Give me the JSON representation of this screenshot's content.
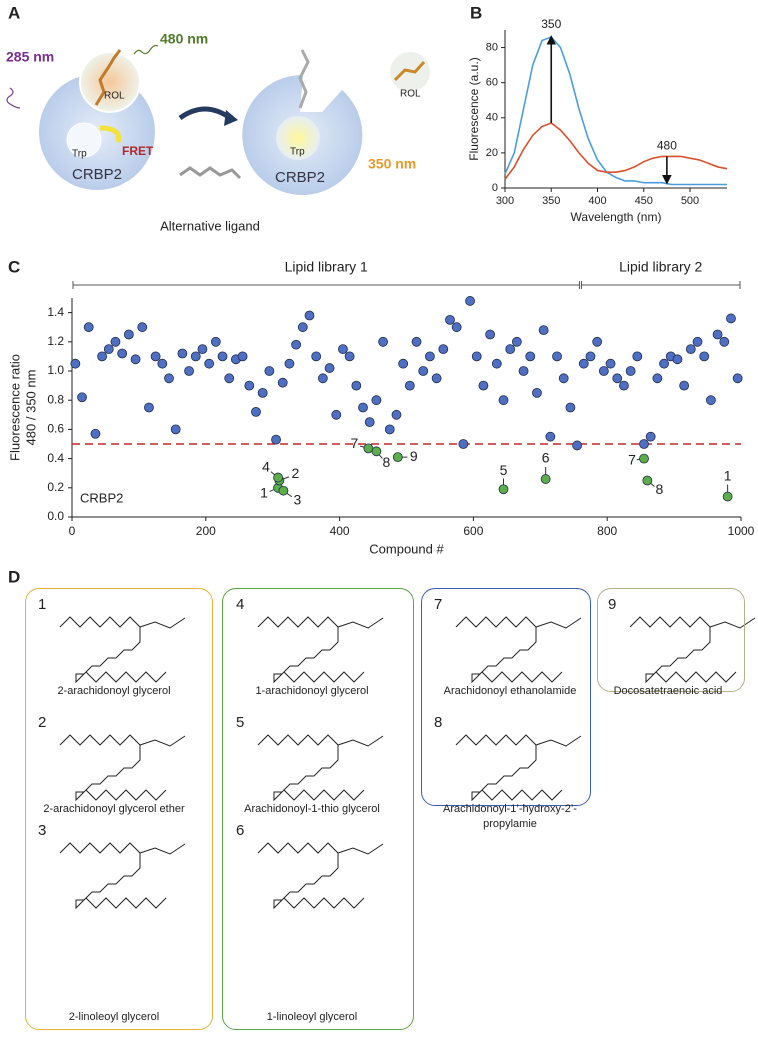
{
  "panel_labels": [
    "A",
    "B",
    "C",
    "D"
  ],
  "panel_a": {
    "excitation": "285 nm",
    "emission_fret": "480 nm",
    "rol_bound": "ROL",
    "trp_left": "Trp",
    "fret": "FRET",
    "protein_left": "CRBP2",
    "rol_free": "ROL",
    "trp_right": "Trp",
    "emission_trp": "350 nm",
    "protein_right": "CRBP2",
    "ligand": "Alternative ligand"
  },
  "chart_data": [
    {
      "type": "line",
      "xlabel": "Wavelength (nm)",
      "ylabel": "Fluorescence (a.u.)",
      "x": [
        300,
        310,
        320,
        330,
        340,
        350,
        360,
        370,
        380,
        390,
        400,
        410,
        420,
        430,
        440,
        450,
        460,
        470,
        480,
        490,
        500,
        510,
        520,
        530,
        540
      ],
      "xlim": [
        300,
        540
      ],
      "xticks": [
        300,
        350,
        400,
        450,
        500
      ],
      "ylim": [
        0,
        90
      ],
      "yticks": [
        0,
        20,
        40,
        60,
        80
      ],
      "series": [
        {
          "color": "#4a9ee0",
          "values": [
            8,
            20,
            45,
            70,
            84,
            86,
            80,
            65,
            45,
            28,
            16,
            9,
            6,
            4,
            4,
            3,
            3,
            3,
            2,
            2,
            2,
            2,
            2,
            2,
            2
          ]
        },
        {
          "color": "#d9502f",
          "values": [
            5,
            12,
            22,
            30,
            35,
            37,
            33,
            27,
            20,
            14,
            10,
            9,
            9,
            10,
            12,
            15,
            17,
            18,
            18,
            18,
            17,
            16,
            14,
            12,
            11
          ]
        }
      ],
      "annotations": [
        {
          "text": "350",
          "x": 350,
          "from": 37,
          "to": 86
        },
        {
          "text": "480",
          "x": 475,
          "from": 18,
          "to": 3
        }
      ]
    },
    {
      "type": "scatter",
      "xlabel": "Compound #",
      "ylabel": [
        "Fluorescence ratio",
        "480 / 350 nm"
      ],
      "annotation": "CRBP2",
      "xlim": [
        0,
        1000
      ],
      "xticks": [
        0,
        200,
        400,
        600,
        800,
        1000
      ],
      "ylim": [
        0,
        1.5
      ],
      "yticks": [
        {
          "value": 0,
          "label": "0.0"
        },
        0.2,
        0.4,
        0.6,
        0.8,
        {
          "value": 1,
          "label": "1.0"
        },
        1.2,
        1.4
      ],
      "threshold": 0.5,
      "threshold_color": "#c0282d",
      "groups": [
        {
          "label": "Lipid library 1",
          "range": [
            0,
            760
          ]
        },
        {
          "label": "Lipid library 2",
          "range": [
            760,
            1000
          ]
        }
      ],
      "series": [
        {
          "color": "#4f6fc4",
          "x": [
            5,
            15,
            25,
            35,
            45,
            55,
            65,
            75,
            85,
            95,
            105,
            115,
            125,
            135,
            145,
            155,
            165,
            175,
            185,
            195,
            205,
            215,
            225,
            235,
            245,
            255,
            265,
            275,
            285,
            295,
            305,
            315,
            325,
            335,
            345,
            355,
            365,
            375,
            385,
            395,
            405,
            415,
            425,
            435,
            445,
            455,
            465,
            475,
            485,
            495,
            505,
            515,
            525,
            535,
            545,
            555,
            565,
            575,
            585,
            595,
            605,
            615,
            625,
            635,
            645,
            655,
            665,
            675,
            685,
            695,
            705,
            715,
            725,
            735,
            745,
            755,
            765,
            775,
            785,
            795,
            805,
            815,
            825,
            835,
            845,
            855,
            865,
            875,
            885,
            895,
            905,
            915,
            925,
            935,
            945,
            955,
            965,
            975,
            985,
            995
          ],
          "values": [
            1.05,
            0.82,
            1.3,
            0.57,
            1.1,
            1.15,
            1.2,
            1.12,
            1.25,
            1.08,
            1.3,
            0.75,
            1.1,
            1.05,
            0.95,
            0.6,
            1.12,
            1.0,
            1.1,
            1.15,
            1.05,
            1.2,
            1.1,
            0.95,
            1.08,
            1.1,
            0.9,
            0.72,
            0.85,
            1.0,
            0.53,
            0.92,
            1.05,
            1.18,
            1.3,
            1.38,
            1.1,
            0.95,
            1.02,
            0.7,
            1.15,
            1.1,
            0.9,
            0.75,
            0.65,
            0.8,
            1.2,
            0.6,
            0.7,
            1.05,
            0.9,
            1.2,
            1.0,
            1.1,
            0.95,
            1.15,
            1.35,
            1.3,
            0.5,
            1.48,
            1.1,
            0.9,
            1.25,
            1.05,
            0.8,
            1.15,
            1.2,
            1.0,
            1.1,
            0.85,
            1.28,
            0.55,
            1.1,
            0.95,
            0.75,
            0.49,
            1.05,
            1.1,
            1.2,
            1.0,
            1.05,
            0.95,
            0.9,
            1.0,
            1.1,
            0.5,
            0.55,
            0.95,
            1.05,
            1.1,
            1.08,
            0.9,
            1.15,
            1.2,
            1.1,
            0.8,
            1.25,
            1.2,
            1.36,
            0.95
          ]
        },
        {
          "color": "#5cae4a",
          "x": [
            308,
            310,
            308,
            316,
            443,
            455,
            487,
            645,
            708,
            855,
            860,
            980
          ],
          "values": [
            0.2,
            0.25,
            0.27,
            0.18,
            0.47,
            0.45,
            0.41,
            0.19,
            0.26,
            0.4,
            0.25,
            0.14
          ],
          "point_labels": [
            "1",
            "2",
            "4",
            "3",
            "7",
            "8",
            "9",
            "5",
            "6",
            "7",
            "8",
            "1"
          ]
        }
      ]
    }
  ],
  "panel_d": {
    "compounds": [
      {
        "number": "1",
        "name": "2-arachidonoyl glycerol"
      },
      {
        "number": "2",
        "name": "2-arachidonoyl glycerol ether"
      },
      {
        "number": "3",
        "name": "2-linoleoyl glycerol"
      },
      {
        "number": "4",
        "name": "1-arachidonoyl glycerol"
      },
      {
        "number": "5",
        "name": "Arachidonoyl-1-thio glycerol"
      },
      {
        "number": "6",
        "name": "1-linoleoyl glycerol"
      },
      {
        "number": "7",
        "name": "Arachidonoyl ethanolamide"
      },
      {
        "number": "8",
        "name": "Arachidonoyl-1’-hydroxy-2’-propylamie"
      },
      {
        "number": "9",
        "name": "Docosatetraenoic acid"
      }
    ]
  }
}
